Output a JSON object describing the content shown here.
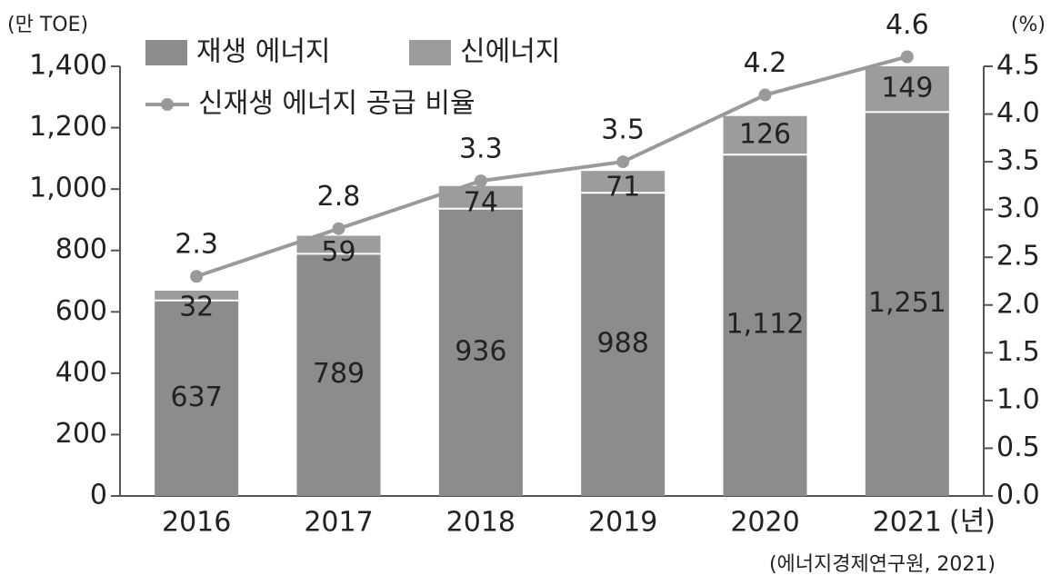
{
  "chart_data": {
    "type": "stacked-bar-line",
    "y_label": "(만 TOE)",
    "y2_label": "(%)",
    "x_unit": "(년)",
    "source": "(에너지경제연구원, 2021)",
    "categories": [
      "2016",
      "2017",
      "2018",
      "2019",
      "2020",
      "2021"
    ],
    "series": [
      {
        "name": "재생 에너지",
        "color": "#8c8c8c",
        "values": [
          637,
          789,
          936,
          988,
          1112,
          1251
        ],
        "value_labels": [
          "637",
          "789",
          "936",
          "988",
          "1,112",
          "1,251"
        ]
      },
      {
        "name": "신에너지",
        "color": "#9c9c9c",
        "values": [
          32,
          59,
          74,
          71,
          126,
          149
        ]
      },
      {
        "name": "신재생 에너지 공급 비율",
        "color": "#9a9a9a",
        "axis": "y2",
        "values": [
          2.3,
          2.8,
          3.3,
          3.5,
          4.2,
          4.6
        ]
      }
    ],
    "ylim": [
      0,
      1400
    ],
    "yticks": [
      0,
      200,
      400,
      600,
      800,
      {
        "value": 1000,
        "label": "1,000"
      },
      {
        "value": 1200,
        "label": "1,200"
      },
      {
        "value": 1400,
        "label": "1,400"
      }
    ],
    "y2lim": [
      0,
      4.5
    ],
    "y2ticks": [
      {
        "value": 0,
        "label": "0.0"
      },
      0.5,
      {
        "value": 1,
        "label": "1.0"
      },
      1.5,
      {
        "value": 2,
        "label": "2.0"
      },
      2.5,
      {
        "value": 3,
        "label": "3.0"
      },
      3.5,
      {
        "value": 4,
        "label": "4.0"
      },
      4.5
    ]
  }
}
